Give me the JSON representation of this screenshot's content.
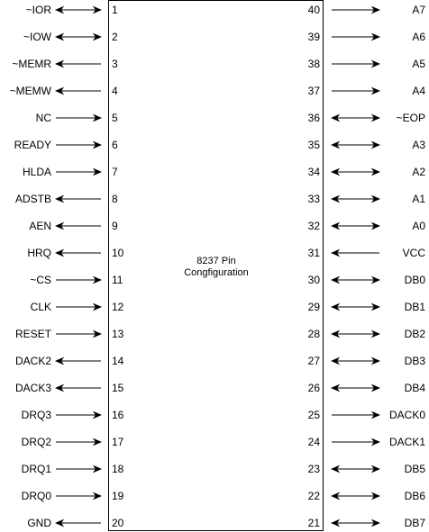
{
  "chip": {
    "title_line1": "8237 Pin",
    "title_line2": "Congfiguration"
  },
  "left_pins": [
    {
      "num": "1",
      "name": "~IOR",
      "dir": "bi"
    },
    {
      "num": "2",
      "name": "~IOW",
      "dir": "bi"
    },
    {
      "num": "3",
      "name": "~MEMR",
      "dir": "out"
    },
    {
      "num": "4",
      "name": "~MEMW",
      "dir": "out"
    },
    {
      "num": "5",
      "name": "NC",
      "dir": "in"
    },
    {
      "num": "6",
      "name": "READY",
      "dir": "in"
    },
    {
      "num": "7",
      "name": "HLDA",
      "dir": "in"
    },
    {
      "num": "8",
      "name": "ADSTB",
      "dir": "out"
    },
    {
      "num": "9",
      "name": "AEN",
      "dir": "out"
    },
    {
      "num": "10",
      "name": "HRQ",
      "dir": "out"
    },
    {
      "num": "11",
      "name": "~CS",
      "dir": "in"
    },
    {
      "num": "12",
      "name": "CLK",
      "dir": "in"
    },
    {
      "num": "13",
      "name": "RESET",
      "dir": "in"
    },
    {
      "num": "14",
      "name": "DACK2",
      "dir": "out"
    },
    {
      "num": "15",
      "name": "DACK3",
      "dir": "out"
    },
    {
      "num": "16",
      "name": "DRQ3",
      "dir": "in"
    },
    {
      "num": "17",
      "name": "DRQ2",
      "dir": "in"
    },
    {
      "num": "18",
      "name": "DRQ1",
      "dir": "in"
    },
    {
      "num": "19",
      "name": "DRQ0",
      "dir": "in"
    },
    {
      "num": "20",
      "name": "GND",
      "dir": "out"
    }
  ],
  "right_pins": [
    {
      "num": "40",
      "name": "A7",
      "dir": "out"
    },
    {
      "num": "39",
      "name": "A6",
      "dir": "out"
    },
    {
      "num": "38",
      "name": "A5",
      "dir": "out"
    },
    {
      "num": "37",
      "name": "A4",
      "dir": "out"
    },
    {
      "num": "36",
      "name": "~EOP",
      "dir": "bi"
    },
    {
      "num": "35",
      "name": "A3",
      "dir": "bi"
    },
    {
      "num": "34",
      "name": "A2",
      "dir": "bi"
    },
    {
      "num": "33",
      "name": "A1",
      "dir": "bi"
    },
    {
      "num": "32",
      "name": "A0",
      "dir": "bi"
    },
    {
      "num": "31",
      "name": "VCC",
      "dir": "in"
    },
    {
      "num": "30",
      "name": "DB0",
      "dir": "bi"
    },
    {
      "num": "29",
      "name": "DB1",
      "dir": "bi"
    },
    {
      "num": "28",
      "name": "DB2",
      "dir": "bi"
    },
    {
      "num": "27",
      "name": "DB3",
      "dir": "bi"
    },
    {
      "num": "26",
      "name": "DB4",
      "dir": "bi"
    },
    {
      "num": "25",
      "name": "DACK0",
      "dir": "out"
    },
    {
      "num": "24",
      "name": "DACK1",
      "dir": "out"
    },
    {
      "num": "23",
      "name": "DB5",
      "dir": "bi"
    },
    {
      "num": "22",
      "name": "DB6",
      "dir": "bi"
    },
    {
      "num": "21",
      "name": "DB7",
      "dir": "bi"
    }
  ]
}
